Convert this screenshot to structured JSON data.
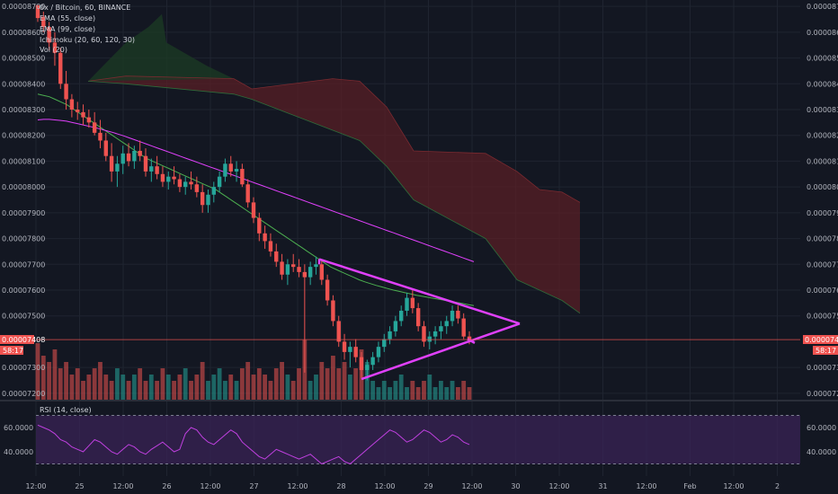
{
  "chart_data": {
    "type": "candlestick",
    "title": "0x / Bitcoin, 60, BINANCE",
    "indicators": [
      {
        "name": "EMA (55, close)",
        "color": "#4caf50"
      },
      {
        "name": "EMA (99, close)",
        "color": "#e040fb"
      },
      {
        "name": "Ichimoku (20, 60, 120, 30)",
        "color": "#8b2a2f"
      },
      {
        "name": "Vol (20)",
        "color": "#ffffff"
      }
    ],
    "price_axis": {
      "min": 7.175e-05,
      "max": 8.725e-05,
      "ticks": [
        "0.00008700",
        "0.00008600",
        "0.00008500",
        "0.00008400",
        "0.00008300",
        "0.00008200",
        "0.00008100",
        "0.00008000",
        "0.00007900",
        "0.00007800",
        "0.00007700",
        "0.00007600",
        "0.00007500",
        "0.00007300",
        "0.00007200"
      ]
    },
    "current_price": {
      "label": "0.00007408",
      "value": 7.408e-05,
      "countdown": "58:17",
      "color": "#ef5350"
    },
    "time_axis": {
      "labels": [
        "12:00",
        "25",
        "12:00",
        "26",
        "12:00",
        "27",
        "12:00",
        "28",
        "12:00",
        "29",
        "12:00",
        "30",
        "12:00",
        "31",
        "12:00",
        "Feb",
        "12:00",
        "2"
      ]
    },
    "candles_ohlc": [
      [
        8705,
        8700,
        8640,
        8655
      ],
      [
        8660,
        8680,
        8600,
        8620
      ],
      [
        8620,
        8640,
        8530,
        8560
      ],
      [
        8560,
        8600,
        8470,
        8520
      ],
      [
        8520,
        8540,
        8380,
        8400
      ],
      [
        8400,
        8450,
        8300,
        8340
      ],
      [
        8340,
        8360,
        8270,
        8300
      ],
      [
        8300,
        8330,
        8260,
        8290
      ],
      [
        8290,
        8320,
        8240,
        8270
      ],
      [
        8270,
        8300,
        8230,
        8250
      ],
      [
        8250,
        8290,
        8200,
        8210
      ],
      [
        8210,
        8260,
        8150,
        8180
      ],
      [
        8180,
        8210,
        8100,
        8120
      ],
      [
        8120,
        8170,
        8020,
        8060
      ],
      [
        8060,
        8120,
        8000,
        8090
      ],
      [
        8090,
        8160,
        8050,
        8130
      ],
      [
        8130,
        8170,
        8080,
        8100
      ],
      [
        8100,
        8160,
        8070,
        8140
      ],
      [
        8140,
        8180,
        8100,
        8120
      ],
      [
        8120,
        8150,
        8040,
        8060
      ],
      [
        8060,
        8110,
        8020,
        8080
      ],
      [
        8080,
        8120,
        8030,
        8050
      ],
      [
        8050,
        8080,
        8000,
        8020
      ],
      [
        8020,
        8060,
        7990,
        8040
      ],
      [
        8040,
        8080,
        8010,
        8030
      ],
      [
        8030,
        8050,
        7980,
        8000
      ],
      [
        8000,
        8040,
        7970,
        8020
      ],
      [
        8020,
        8060,
        7990,
        8010
      ],
      [
        8010,
        8040,
        7960,
        7980
      ],
      [
        7980,
        8010,
        7900,
        7930
      ],
      [
        7930,
        7990,
        7900,
        7970
      ],
      [
        7970,
        8020,
        7940,
        8000
      ],
      [
        8000,
        8060,
        7980,
        8040
      ],
      [
        8040,
        8110,
        8020,
        8090
      ],
      [
        8090,
        8120,
        8040,
        8060
      ],
      [
        8060,
        8100,
        8020,
        8070
      ],
      [
        8070,
        8090,
        8000,
        8010
      ],
      [
        8010,
        8030,
        7920,
        7940
      ],
      [
        7940,
        7960,
        7860,
        7880
      ],
      [
        7880,
        7900,
        7790,
        7820
      ],
      [
        7820,
        7850,
        7760,
        7790
      ],
      [
        7790,
        7820,
        7730,
        7750
      ],
      [
        7750,
        7780,
        7690,
        7710
      ],
      [
        7710,
        7740,
        7640,
        7660
      ],
      [
        7660,
        7720,
        7620,
        7700
      ],
      [
        7700,
        7740,
        7670,
        7690
      ],
      [
        7690,
        7720,
        7650,
        7670
      ],
      [
        7670,
        7700,
        7280,
        7650
      ],
      [
        7650,
        7710,
        7620,
        7690
      ],
      [
        7690,
        7730,
        7660,
        7700
      ],
      [
        7700,
        7720,
        7620,
        7640
      ],
      [
        7640,
        7660,
        7540,
        7560
      ],
      [
        7560,
        7580,
        7460,
        7480
      ],
      [
        7480,
        7500,
        7380,
        7400
      ],
      [
        7400,
        7430,
        7330,
        7360
      ],
      [
        7360,
        7400,
        7300,
        7380
      ],
      [
        7380,
        7410,
        7320,
        7340
      ],
      [
        7340,
        7360,
        7260,
        7290
      ],
      [
        7290,
        7330,
        7250,
        7310
      ],
      [
        7310,
        7360,
        7290,
        7340
      ],
      [
        7340,
        7400,
        7320,
        7380
      ],
      [
        7380,
        7430,
        7360,
        7410
      ],
      [
        7410,
        7460,
        7390,
        7440
      ],
      [
        7440,
        7500,
        7420,
        7480
      ],
      [
        7480,
        7540,
        7460,
        7520
      ],
      [
        7520,
        7590,
        7500,
        7570
      ],
      [
        7570,
        7600,
        7510,
        7530
      ],
      [
        7530,
        7550,
        7440,
        7460
      ],
      [
        7460,
        7480,
        7380,
        7400
      ],
      [
        7400,
        7440,
        7370,
        7420
      ],
      [
        7420,
        7460,
        7390,
        7440
      ],
      [
        7440,
        7480,
        7410,
        7460
      ],
      [
        7460,
        7500,
        7430,
        7480
      ],
      [
        7480,
        7540,
        7460,
        7520
      ],
      [
        7520,
        7540,
        7470,
        7490
      ],
      [
        7490,
        7510,
        7410,
        7420
      ],
      [
        7420,
        7440,
        7390,
        7408
      ]
    ],
    "volume_relative": [
      0.9,
      0.7,
      0.6,
      0.8,
      0.5,
      0.6,
      0.4,
      0.5,
      0.3,
      0.4,
      0.5,
      0.6,
      0.4,
      0.3,
      0.5,
      0.4,
      0.3,
      0.4,
      0.5,
      0.3,
      0.4,
      0.3,
      0.5,
      0.4,
      0.3,
      0.4,
      0.5,
      0.3,
      0.4,
      0.6,
      0.3,
      0.4,
      0.5,
      0.3,
      0.4,
      0.3,
      0.5,
      0.6,
      0.4,
      0.5,
      0.4,
      0.3,
      0.5,
      0.6,
      0.4,
      0.3,
      0.5,
      0.95,
      0.3,
      0.4,
      0.6,
      0.5,
      0.7,
      0.5,
      0.6,
      0.4,
      0.5,
      0.8,
      0.6,
      0.3,
      0.2,
      0.3,
      0.2,
      0.3,
      0.4,
      0.2,
      0.3,
      0.2,
      0.3,
      0.4,
      0.2,
      0.3,
      0.2,
      0.3,
      0.2,
      0.3,
      0.2
    ],
    "ema55": [
      8360,
      8355,
      8350,
      8340,
      8330,
      8320,
      8305,
      8290,
      8275,
      8260,
      8245,
      8230,
      8215,
      8200,
      8185,
      8170,
      8155,
      8140,
      8125,
      8110,
      8100,
      8090,
      8080,
      8070,
      8060,
      8050,
      8040,
      8030,
      8020,
      8010,
      8000,
      7990,
      7975,
      7960,
      7945,
      7930,
      7915,
      7900,
      7885,
      7870,
      7855,
      7840,
      7825,
      7810,
      7795,
      7780,
      7765,
      7750,
      7735,
      7720,
      7705,
      7690,
      7680,
      7670,
      7660,
      7650,
      7640,
      7632,
      7625,
      7618,
      7612,
      7606,
      7600,
      7595,
      7590,
      7585,
      7580,
      7576,
      7572,
      7568,
      7564,
      7560,
      7556,
      7552,
      7548,
      7544,
      7540
    ],
    "ema99": [
      8260,
      8262,
      8262,
      8260,
      8258,
      8255,
      8250,
      8245,
      8240,
      8235,
      8230,
      8224,
      8218,
      8212,
      8205,
      8198,
      8190,
      8182,
      8174,
      8166,
      8158,
      8150,
      8142,
      8134,
      8126,
      8118,
      8110,
      8102,
      8094,
      8086,
      8078,
      8070,
      8062,
      8054,
      8046,
      8038,
      8030,
      8022,
      8014,
      8006,
      7998,
      7990,
      7982,
      7974,
      7966,
      7958,
      7950,
      7942,
      7934,
      7926,
      7918,
      7910,
      7902,
      7894,
      7886,
      7878,
      7870,
      7862,
      7854,
      7846,
      7838,
      7830,
      7822,
      7814,
      7806,
      7798,
      7790,
      7782,
      7774,
      7766,
      7758,
      7750,
      7742,
      7734,
      7726,
      7718,
      7710
    ],
    "triangle_pattern": {
      "upper_line": [
        [
          7.72e-05,
          0.55
        ],
        [
          7.47e-05,
          0.85
        ]
      ],
      "lower_line": [
        [
          7.255e-05,
          0.55
        ],
        [
          7.47e-05,
          0.85
        ]
      ],
      "color": "#e040fb"
    },
    "rsi": {
      "label": "RSI (14, close)",
      "ticks": [
        "60.0000",
        "40.0000"
      ],
      "upper_band": 70,
      "lower_band": 30,
      "values": [
        62,
        60,
        58,
        55,
        50,
        48,
        44,
        42,
        40,
        45,
        50,
        48,
        44,
        40,
        38,
        42,
        46,
        44,
        40,
        38,
        42,
        45,
        48,
        44,
        40,
        42,
        55,
        60,
        58,
        52,
        48,
        46,
        50,
        54,
        58,
        55,
        48,
        44,
        40,
        36,
        34,
        38,
        42,
        40,
        38,
        36,
        34,
        36,
        38,
        34,
        30,
        32,
        34,
        36,
        32,
        30,
        34,
        38,
        42,
        46,
        50,
        54,
        58,
        56,
        52,
        48,
        50,
        54,
        58,
        56,
        52,
        48,
        50,
        54,
        52,
        48,
        46
      ]
    },
    "colors": {
      "background": "#131722",
      "up": "#26a69a",
      "down": "#ef5350",
      "grid": "#1f2430",
      "kumo_bear": "#5d1f25",
      "kumo_bull": "#1b3a24",
      "rsi_line": "#c040e0",
      "rsi_band": "#3a2356"
    }
  }
}
